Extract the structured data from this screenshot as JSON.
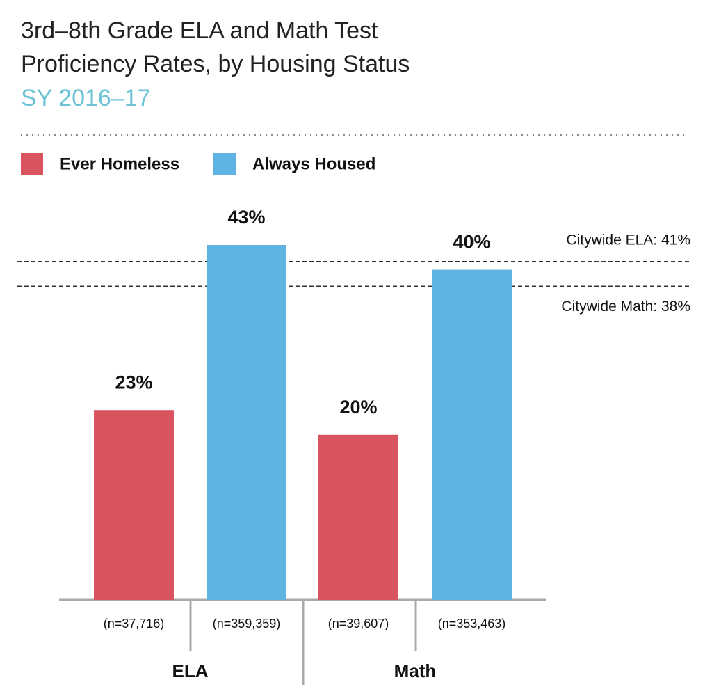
{
  "chart_data": {
    "type": "bar",
    "title": "3rd–8th Grade ELA and Math Test Proficiency Rates, by Housing Status",
    "subtitle": "SY 2016–17",
    "categories": [
      "ELA",
      "Math"
    ],
    "series": [
      {
        "name": "Ever Homeless",
        "color": "#d9545e",
        "values": [
          23,
          20
        ],
        "value_labels": [
          "23%",
          "20%"
        ],
        "n_labels": [
          "(n=37,716)",
          "(n=39,607)"
        ]
      },
      {
        "name": "Always Housed",
        "color": "#5fb3e3",
        "values": [
          43,
          40
        ],
        "value_labels": [
          "43%",
          "40%"
        ],
        "n_labels": [
          "(n=359,359)",
          "(n=353,463)"
        ]
      }
    ],
    "reference_lines": [
      {
        "label": "Citywide ELA: 41%",
        "value": 41
      },
      {
        "label": "Citywide Math: 38%",
        "value": 38
      }
    ]
  }
}
